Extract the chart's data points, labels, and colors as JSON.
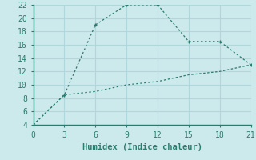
{
  "line1_x": [
    0,
    3,
    6,
    9,
    12,
    15,
    18,
    21
  ],
  "line1_y": [
    4,
    8.5,
    19,
    22,
    22,
    16.5,
    16.5,
    13
  ],
  "line2_x": [
    0,
    3,
    6,
    9,
    12,
    15,
    18,
    21
  ],
  "line2_y": [
    4,
    8.5,
    9,
    10,
    10.5,
    11.5,
    12,
    13
  ],
  "line_color": "#2a7d6e",
  "markersize": 3.5,
  "xlabel": "Humidex (Indice chaleur)",
  "xlim": [
    0,
    21
  ],
  "ylim": [
    4,
    22
  ],
  "xticks": [
    0,
    3,
    6,
    9,
    12,
    15,
    18,
    21
  ],
  "yticks": [
    4,
    6,
    8,
    10,
    12,
    14,
    16,
    18,
    20,
    22
  ],
  "bg_color": "#cce9ec",
  "grid_color": "#b0d8dc",
  "spine_color": "#2a7d6e",
  "font_color": "#2a7d6e",
  "label_fontsize": 7.5,
  "tick_fontsize": 7
}
